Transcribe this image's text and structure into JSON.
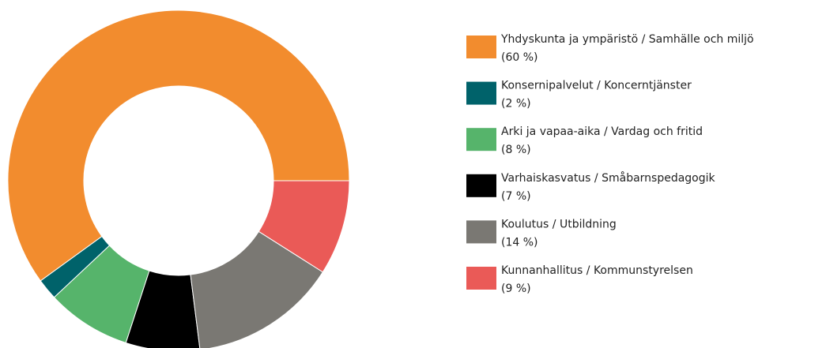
{
  "chart_data": {
    "type": "donut",
    "series": [
      {
        "name": "Yhdyskunta ja ympäristö / Samhälle och miljö",
        "color": "#f28c2e"
      },
      {
        "name": "Konsernipalvelut / Koncerntjänster",
        "color": "#00626a"
      },
      {
        "name": "Arki ja vapaa-aika / Vardag och fritid",
        "color": "#56b46b"
      },
      {
        "name": "Varhaiskasvatus / Småbarnspedagogik",
        "color": "#000000"
      },
      {
        "name": "Koulutus / Utbildning",
        "color": "#7a7873"
      },
      {
        "name": "Kunnanhallitus / Kommunstyrelsen",
        "color": "#ea5a57"
      }
    ],
    "values": [
      60,
      2,
      8,
      7,
      14,
      9
    ],
    "value_labels": [
      "(60 %)",
      "(2 %)",
      "(8 %)",
      "(7 %)",
      "(14 %)",
      "(9 %)"
    ],
    "legend": "right"
  }
}
